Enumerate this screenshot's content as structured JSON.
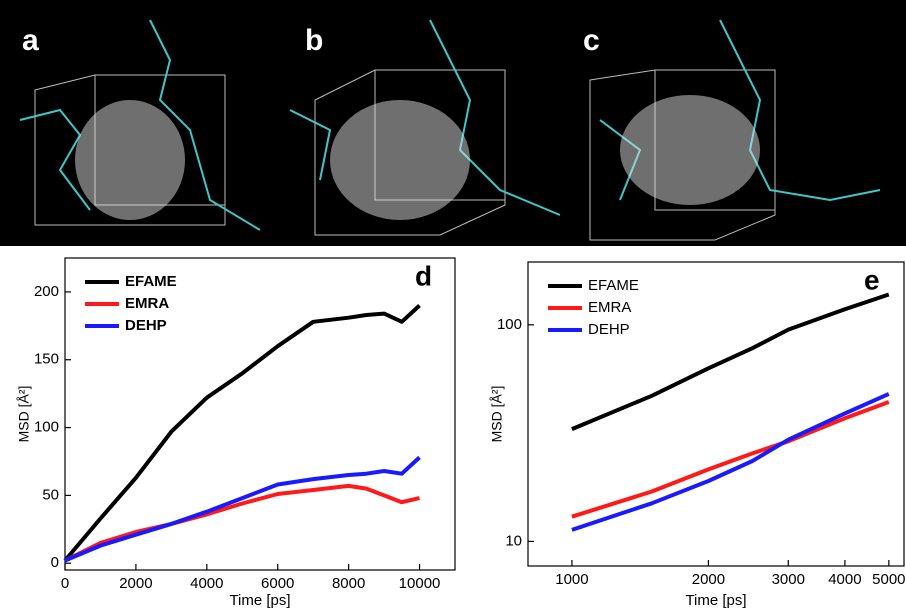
{
  "panels": {
    "labels": [
      "a",
      "b",
      "c"
    ]
  },
  "chart_data": [
    {
      "type": "line",
      "panel_label": "d",
      "xlabel": "Time [ps]",
      "ylabel": "MSD [Å²]",
      "x": [
        0,
        1000,
        2000,
        3000,
        4000,
        5000,
        6000,
        7000,
        8000,
        8500,
        9000,
        9500,
        10000
      ],
      "series": [
        {
          "name": "EFAME",
          "color": "#000000",
          "values": [
            2,
            33,
            63,
            97,
            122,
            140,
            160,
            178,
            181,
            183,
            184,
            178,
            190
          ]
        },
        {
          "name": "EMRA",
          "color": "#ff1a1a",
          "values": [
            2,
            15,
            23,
            29,
            36,
            44,
            51,
            54,
            57,
            55,
            50,
            45,
            48
          ]
        },
        {
          "name": "DEHP",
          "color": "#1a1aff",
          "values": [
            2,
            13,
            21,
            29,
            38,
            48,
            58,
            62,
            65,
            66,
            68,
            66,
            78
          ]
        }
      ],
      "xlim": [
        0,
        11000
      ],
      "xticks": [
        0,
        2000,
        4000,
        6000,
        8000,
        10000
      ],
      "ylim": [
        -5,
        225
      ],
      "yticks": [
        0,
        50,
        100,
        150,
        200
      ],
      "legend": "upper left",
      "legend_bold": true
    },
    {
      "type": "line",
      "panel_label": "e",
      "xlabel": "Time [ps]",
      "ylabel": "MSD [Å²]",
      "x": [
        1000,
        1500,
        2000,
        2500,
        3000,
        4000,
        5000
      ],
      "series": [
        {
          "name": "EFAME",
          "color": "#000000",
          "values": [
            33,
            47,
            63,
            78,
            95,
            118,
            138
          ]
        },
        {
          "name": "EMRA",
          "color": "#ff1a1a",
          "values": [
            13,
            17,
            21.5,
            25.5,
            29,
            37,
            44
          ]
        },
        {
          "name": "DEHP",
          "color": "#1a1aff",
          "values": [
            11.3,
            15,
            19,
            23.5,
            29.5,
            39,
            48
          ]
        }
      ],
      "xlim": [
        800,
        5400
      ],
      "xticks": [
        1000,
        2000,
        3000,
        4000,
        5000
      ],
      "xscale": "log",
      "ylim": [
        7.7,
        195
      ],
      "yticks": [
        10,
        100
      ],
      "yscale": "log",
      "legend": "upper left",
      "legend_bold": false
    }
  ]
}
